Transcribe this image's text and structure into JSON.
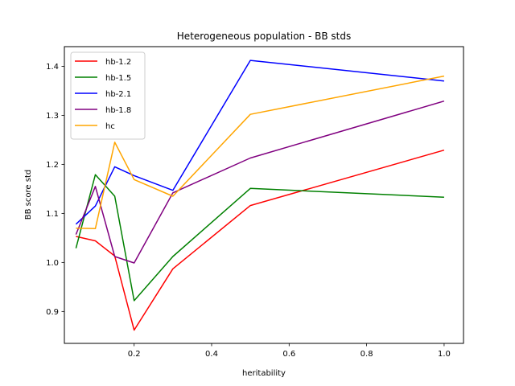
{
  "chart_data": {
    "type": "line",
    "title": "Heterogeneous population - BB stds",
    "xlabel": "heritability",
    "ylabel": "BB score std",
    "xlim": [
      0.02,
      1.05
    ],
    "ylim": [
      0.835,
      1.44
    ],
    "xticks": [
      0.2,
      0.4,
      0.6,
      0.8,
      1.0
    ],
    "xtick_labels": [
      "0.2",
      "0.4",
      "0.6",
      "0.8",
      "1.0"
    ],
    "yticks": [
      0.9,
      1.0,
      1.1,
      1.2,
      1.3,
      1.4
    ],
    "ytick_labels": [
      "0.9",
      "1.0",
      "1.1",
      "1.2",
      "1.3",
      "1.4"
    ],
    "grid": false,
    "legend_position": "top-left",
    "x": [
      0.05,
      0.1,
      0.15,
      0.2,
      0.3,
      0.5,
      1.0
    ],
    "series": [
      {
        "name": "hb-1.2",
        "color": "#ff0000",
        "values": [
          1.053,
          1.044,
          1.013,
          0.862,
          0.987,
          1.116,
          1.229
        ]
      },
      {
        "name": "hb-1.5",
        "color": "#008000",
        "values": [
          1.029,
          1.179,
          1.135,
          0.922,
          1.012,
          1.151,
          1.133
        ]
      },
      {
        "name": "hb-2.1",
        "color": "#0000ff",
        "values": [
          1.078,
          1.115,
          1.195,
          1.177,
          1.147,
          1.412,
          1.37
        ]
      },
      {
        "name": "hb-1.8",
        "color": "#800080",
        "values": [
          1.057,
          1.155,
          1.012,
          0.999,
          1.142,
          1.213,
          1.329
        ]
      },
      {
        "name": "hc",
        "color": "#ffa500",
        "values": [
          1.07,
          1.069,
          1.245,
          1.169,
          1.135,
          1.302,
          1.38
        ]
      }
    ]
  }
}
